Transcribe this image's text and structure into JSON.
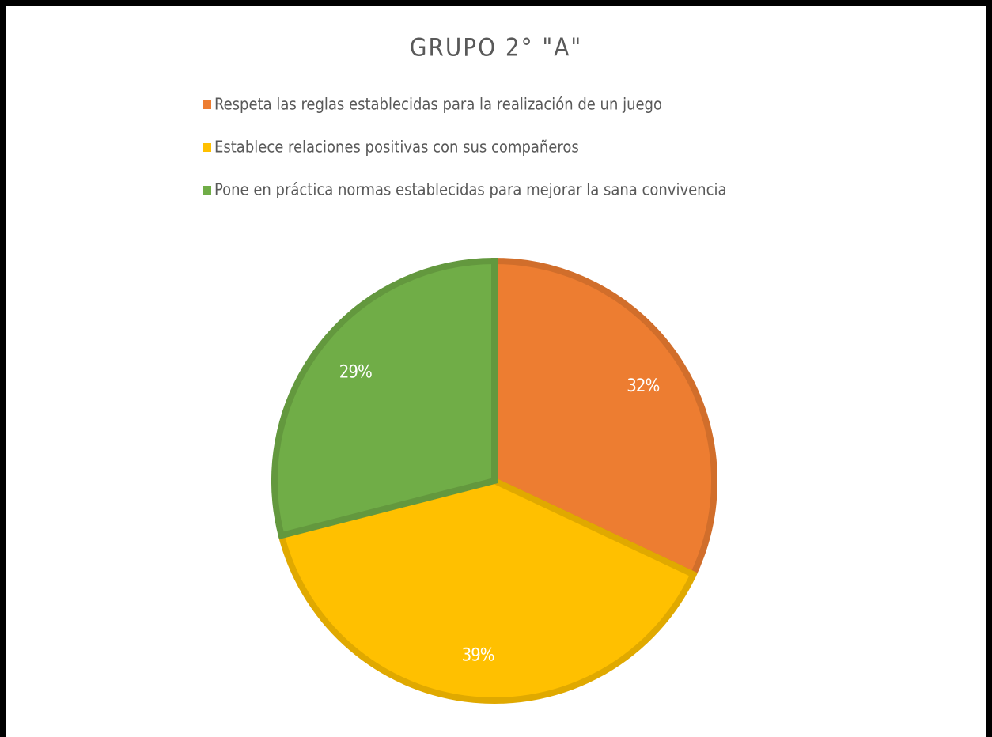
{
  "chart_data": {
    "type": "pie",
    "title": "GRUPO 2° \"A\"",
    "categories": [
      "Respeta las reglas establecidas para la realización de un juego",
      "Establece relaciones positivas con sus compañeros",
      "Pone en práctica normas establecidas para mejorar la sana convivencia"
    ],
    "values": [
      32,
      39,
      29
    ],
    "value_labels": [
      "32%",
      "39%",
      "29%"
    ],
    "colors": [
      "#ED7D31",
      "#FFC000",
      "#70AD47"
    ]
  }
}
